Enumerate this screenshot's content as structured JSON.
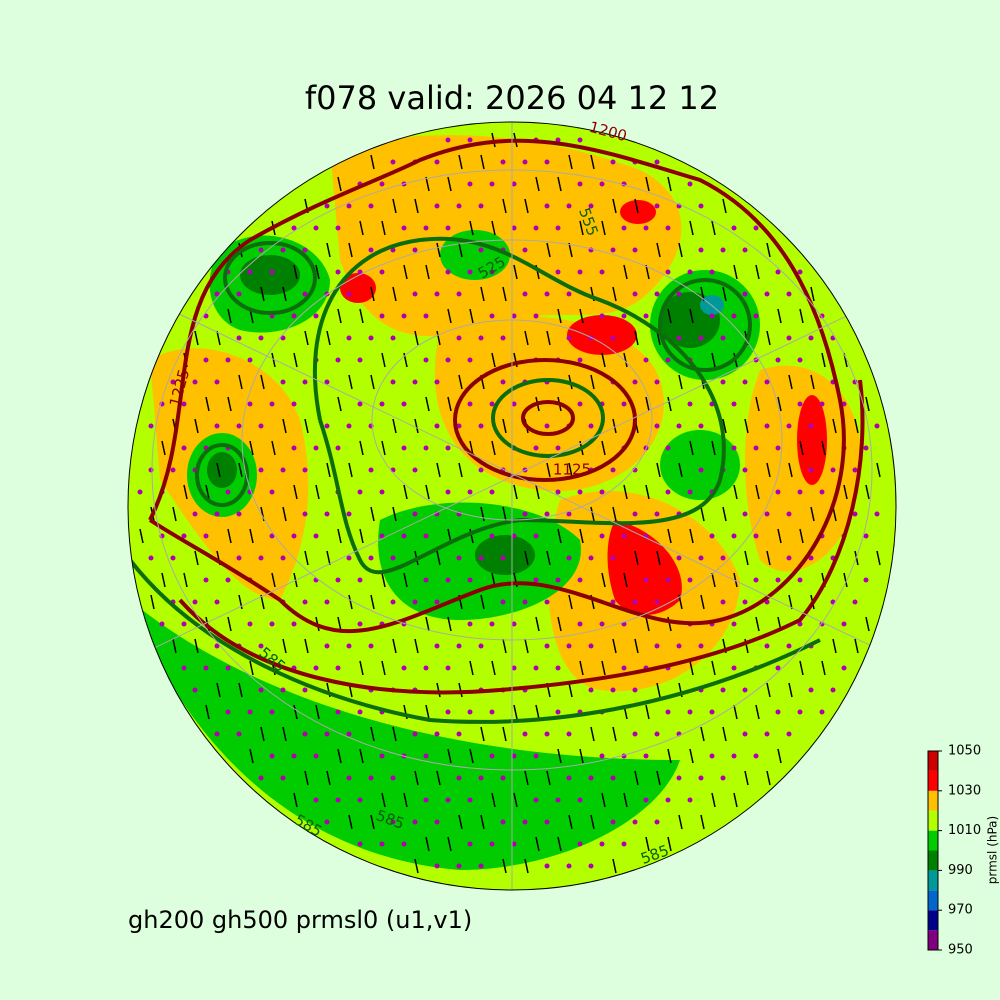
{
  "title": "f078 valid:   2026 04 12 12",
  "subtitle": "gh200 gh500 prmsl0 (u1,v1)",
  "colorbar": {
    "label": "prmsl (hPa)",
    "levels": [
      950,
      960,
      970,
      980,
      990,
      1000,
      1010,
      1020,
      1030,
      1040,
      1050
    ],
    "colors": [
      "#800080",
      "#00008b",
      "#0066cc",
      "#009999",
      "#008000",
      "#00cc00",
      "#b3ff00",
      "#ffc000",
      "#ff0000",
      "#cc0000"
    ],
    "ticks": [
      950,
      970,
      990,
      1010,
      1030,
      1050
    ]
  },
  "contour_labels": [
    "1200",
    "525",
    "1225",
    "1125",
    "555",
    "585",
    "585",
    "585",
    "585"
  ]
}
